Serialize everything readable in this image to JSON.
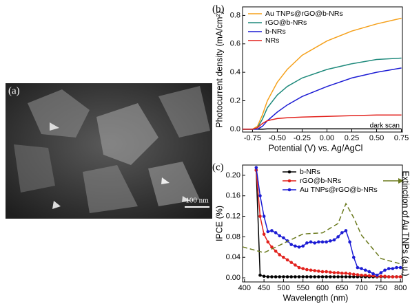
{
  "image": {
    "label": "(a)",
    "scale_bar": "100 nm"
  },
  "chart_data": [
    {
      "type": "line",
      "panel": "(b)",
      "x_label": "Potential (V) vs. Ag/AgCl",
      "y_label": "Photocurrent density (mA/cm²)",
      "xlim": [
        -0.85,
        0.76
      ],
      "ylim": [
        -0.02,
        0.86
      ],
      "xticks": [
        -0.75,
        {
          "value": -0.5,
          "label": "-0.50"
        },
        -0.25,
        {
          "value": 0,
          "label": "0.00"
        },
        0.25,
        {
          "value": 0.5,
          "label": "0.50"
        },
        0.75
      ],
      "yticks": [
        {
          "value": 0,
          "label": "0.0"
        },
        0.2,
        0.4,
        0.6,
        0.8
      ],
      "legend": "upper left",
      "markers": false,
      "x": [
        -0.85,
        -0.75,
        -0.7,
        -0.65,
        -0.6,
        -0.5,
        -0.4,
        -0.25,
        0,
        0.25,
        0.5,
        0.75
      ],
      "series": [
        {
          "name": "Au TNPs@rGO@b-NRs",
          "color": "#f5a01a",
          "values": [
            0,
            0,
            0.02,
            0.1,
            0.2,
            0.33,
            0.42,
            0.52,
            0.62,
            0.69,
            0.74,
            0.78
          ]
        },
        {
          "name": "rGO@b-NRs",
          "color": "#1f8a7c",
          "values": [
            0,
            0,
            0.01,
            0.07,
            0.15,
            0.24,
            0.3,
            0.36,
            0.42,
            0.46,
            0.49,
            0.5
          ]
        },
        {
          "name": "b-NRs",
          "color": "#1c1cd4",
          "values": [
            0,
            0,
            0,
            0.02,
            0.06,
            0.12,
            0.17,
            0.23,
            0.3,
            0.36,
            0.4,
            0.43
          ]
        },
        {
          "name": "NRs",
          "color": "#e2211c",
          "values": [
            0,
            0,
            0.01,
            0.04,
            0.06,
            0.075,
            0.08,
            0.085,
            0.09,
            0.095,
            0.1,
            0.1
          ]
        }
      ],
      "dark_scan": {
        "label": "dark scan",
        "color": "#000000",
        "values": [
          0,
          0,
          0,
          0,
          0.002,
          0.002,
          0.002,
          0.002,
          0.002,
          0.002,
          0.002,
          0.002
        ]
      }
    },
    {
      "type": "line",
      "panel": "(c)",
      "x_label": "Wavelength (nm)",
      "y_label": "IPCE (%)",
      "y2_label": "Extinction of Au TNPs (a.u.)",
      "xlim": [
        395,
        805
      ],
      "ylim": [
        -0.008,
        0.22
      ],
      "y2lim": [
        0,
        1
      ],
      "xticks": [
        400,
        450,
        500,
        550,
        600,
        650,
        700,
        750,
        800
      ],
      "yticks": [
        {
          "value": 0,
          "label": "0.00"
        },
        0.04,
        0.08,
        0.12,
        0.16,
        {
          "value": 0.2,
          "label": "0.20"
        }
      ],
      "legend": "upper center",
      "markers": true,
      "x": [
        430,
        440,
        450,
        460,
        470,
        480,
        490,
        500,
        510,
        520,
        530,
        540,
        550,
        560,
        570,
        580,
        590,
        600,
        610,
        620,
        630,
        640,
        650,
        660,
        670,
        680,
        690,
        700,
        710,
        720,
        730,
        740,
        750,
        760,
        770,
        780,
        790,
        800
      ],
      "series": [
        {
          "name": "b-NRs",
          "color": "#000000",
          "values": [
            0.21,
            0.005,
            0.003,
            0.002,
            0.002,
            0.002,
            0.002,
            0.002,
            0.002,
            0.002,
            0.002,
            0.002,
            0.002,
            0.002,
            0.002,
            0.002,
            0.002,
            0.002,
            0.002,
            0.002,
            0.002,
            0.002,
            0.002,
            0.002,
            0.002,
            0.002,
            0.002,
            0.002,
            0.002,
            0.002,
            0.002,
            0.002,
            0.002,
            0.002,
            0.002,
            0.002,
            0.002,
            0.002
          ]
        },
        {
          "name": "rGO@b-NRs",
          "color": "#e2211c",
          "values": [
            0.21,
            0.12,
            0.085,
            0.07,
            0.06,
            0.052,
            0.045,
            0.04,
            0.035,
            0.03,
            0.025,
            0.02,
            0.018,
            0.016,
            0.015,
            0.014,
            0.013,
            0.012,
            0.012,
            0.011,
            0.01,
            0.01,
            0.009,
            0.009,
            0.008,
            0.007,
            0.006,
            0.005,
            0.005,
            0.004,
            0.004,
            0.003,
            0.003,
            0.003,
            0.002,
            0.002,
            0.002,
            0.002
          ]
        },
        {
          "name": "Au TNPs@rGO@b-NRs",
          "color": "#1c1cd4",
          "values": [
            0.215,
            0.16,
            0.12,
            0.09,
            0.092,
            0.088,
            0.082,
            0.078,
            0.072,
            0.065,
            0.062,
            0.06,
            0.062,
            0.068,
            0.07,
            0.068,
            0.07,
            0.07,
            0.07,
            0.072,
            0.074,
            0.08,
            0.088,
            0.092,
            0.07,
            0.04,
            0.02,
            0.018,
            0.015,
            0.012,
            0.008,
            0.005,
            0.01,
            0.015,
            0.018,
            0.018,
            0.02,
            0.02
          ]
        },
        {
          "axis": "y2",
          "dash": true,
          "color": "#6b7a1e",
          "x": [
            395,
            450,
            500,
            550,
            600,
            640,
            660,
            680,
            700,
            750,
            805
          ],
          "values": [
            0.3,
            0.25,
            0.33,
            0.41,
            0.42,
            0.5,
            0.67,
            0.55,
            0.4,
            0.2,
            0.15
          ]
        }
      ]
    }
  ]
}
